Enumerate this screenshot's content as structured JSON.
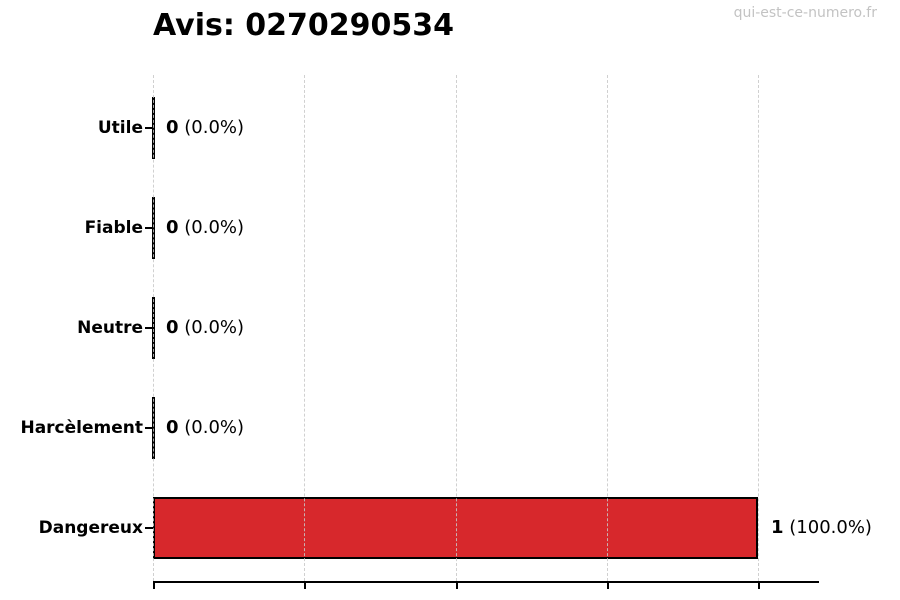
{
  "page": {
    "title": "Avis: 0270290534",
    "watermark": "qui-est-ce-numero.fr"
  },
  "colors": {
    "bar_fill": "#d7282c",
    "bar_edge": "#000000",
    "grid": "#c8c8c8",
    "axis": "#000000",
    "title_text": "#000000",
    "watermark_text": "#c3c3c3",
    "background": "#ffffff"
  },
  "chart_data": {
    "type": "bar",
    "orientation": "horizontal",
    "title": "Avis: 0270290534",
    "xlabel": "",
    "ylabel": "",
    "categories": [
      "Utile",
      "Fiable",
      "Neutre",
      "Harcèlement",
      "Dangereux"
    ],
    "values": [
      0,
      0,
      0,
      0,
      1
    ],
    "counts": [
      "0",
      "0",
      "0",
      "0",
      "1"
    ],
    "percent_labels": [
      "(0.0%)",
      "(0.0%)",
      "(0.0%)",
      "(0.0%)",
      "(100.0%)"
    ],
    "value_labels": [
      "0 (0.0%)",
      "0 (0.0%)",
      "0 (0.0%)",
      "0 (0.0%)",
      "1 (100.0%)"
    ],
    "bar_colors": [
      "#d7282c",
      "#d7282c",
      "#d7282c",
      "#d7282c",
      "#d7282c"
    ],
    "xlim": [
      0,
      1.1
    ],
    "x_gridlines": [
      0,
      0.25,
      0.5,
      0.75,
      1.0
    ],
    "x_tick_labels": [],
    "grid": "vertical-dashed",
    "legend_position": "none"
  }
}
